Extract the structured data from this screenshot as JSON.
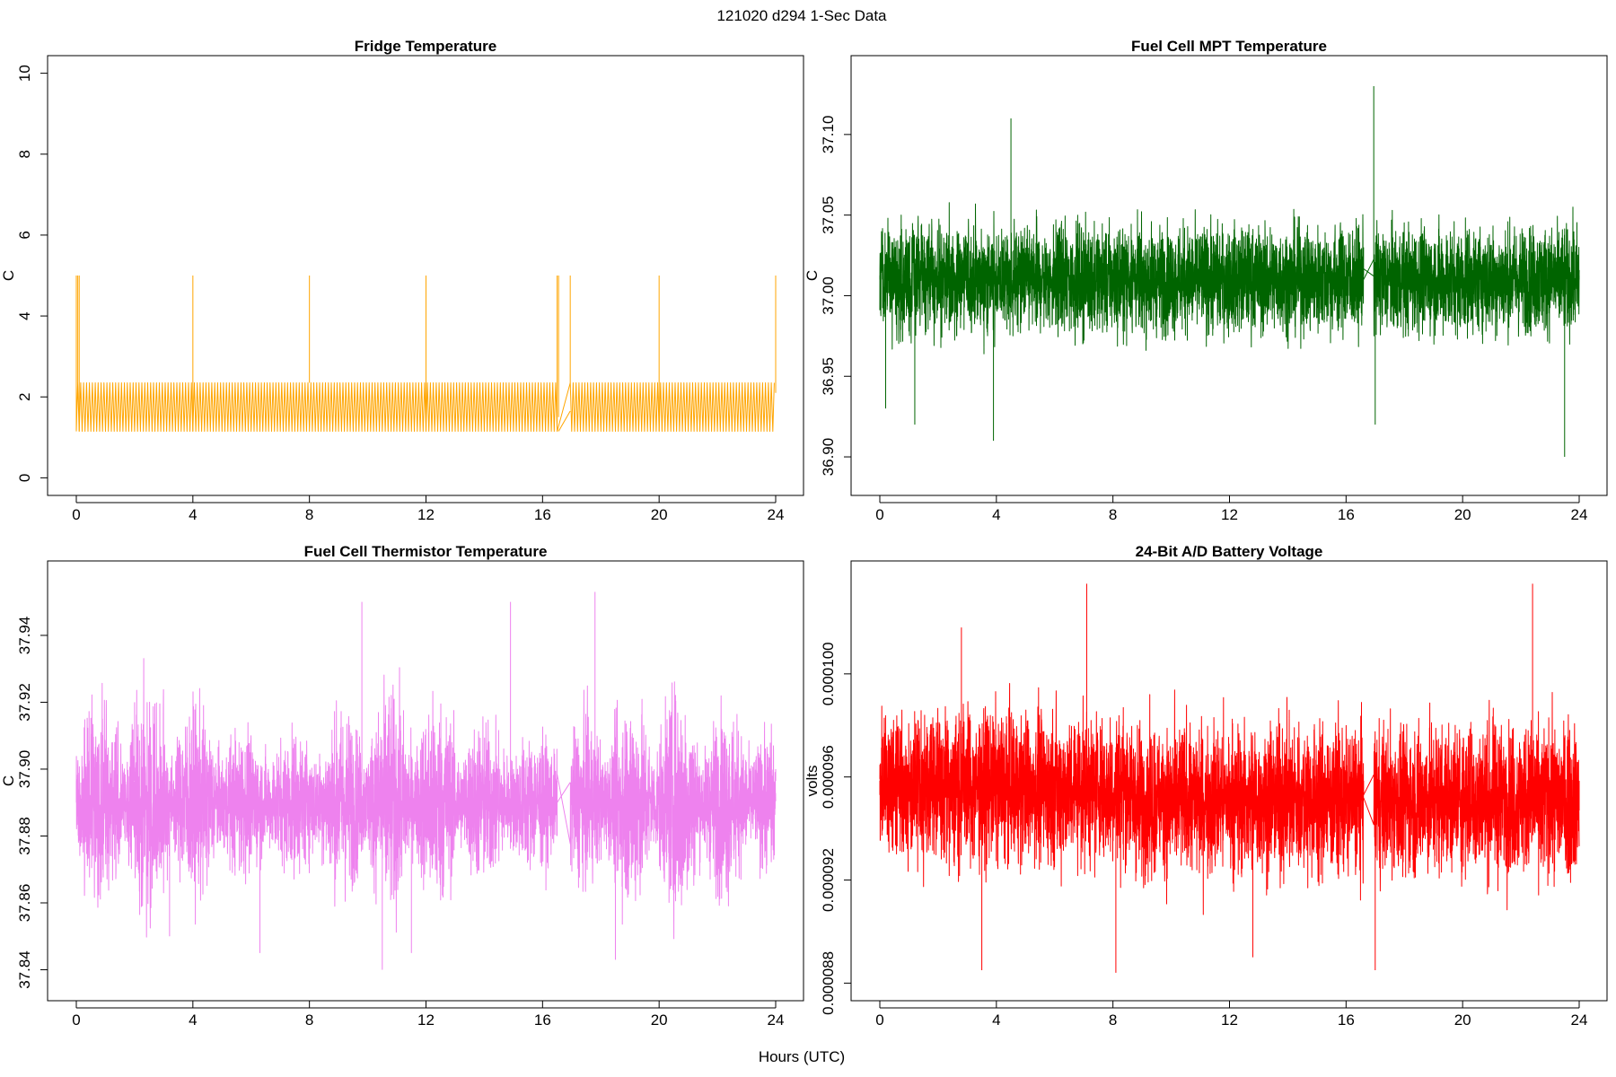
{
  "figure": {
    "title": "121020   d294   1-Sec Data",
    "xlabel": "Hours (UTC)"
  },
  "chart_data": [
    {
      "type": "line",
      "title": "Fridge Temperature",
      "ylabel": "C",
      "color": "#FFA500",
      "xlim": [
        0,
        24
      ],
      "ylim": [
        0,
        10
      ],
      "xticks": [
        "0",
        "4",
        "8",
        "12",
        "16",
        "20",
        "24"
      ],
      "yticks": [
        "0",
        "2",
        "4",
        "6",
        "8",
        "10"
      ],
      "gap": [
        16.55,
        16.95
      ],
      "shape": "sawtooth cycling between about 1.15 and 2.35 C, period about 0.1 h",
      "series": [
        {
          "values": [
            [
              0,
              1.15
            ],
            [
              0.05,
              2.35
            ],
            [
              0.1,
              1.15
            ],
            [
              4,
              1.15
            ],
            [
              8,
              2.35
            ],
            [
              12,
              1.15
            ],
            [
              16.5,
              1.2
            ],
            [
              16.55,
              1.5
            ],
            [
              16.95,
              2.35
            ],
            [
              20,
              1.15
            ],
            [
              24,
              2.1
            ]
          ]
        }
      ]
    },
    {
      "type": "line",
      "title": "Fuel Cell MPT Temperature",
      "ylabel": "C",
      "color": "#006400",
      "xlim": [
        0,
        24
      ],
      "ylim": [
        36.887,
        37.138
      ],
      "xticks": [
        "0",
        "4",
        "8",
        "12",
        "16",
        "20",
        "24"
      ],
      "yticks": [
        "36.90",
        "36.95",
        "37.00",
        "37.05",
        "37.10"
      ],
      "gap": [
        16.6,
        16.95
      ],
      "shape": "dense noise centered near 37.01 C, typical range 36.97-37.06, spikes to 37.13 and 36.90",
      "series": [
        {
          "values": [
            [
              0,
              37.01
            ],
            [
              0.2,
              36.93
            ],
            [
              1.2,
              36.92
            ],
            [
              3.9,
              36.91
            ],
            [
              4.5,
              37.11
            ],
            [
              16.6,
              37.03
            ],
            [
              16.95,
              37.13
            ],
            [
              17.0,
              36.92
            ],
            [
              23.5,
              36.9
            ],
            [
              24,
              37.01
            ]
          ]
        }
      ]
    },
    {
      "type": "line",
      "title": "Fuel Cell Thermistor Temperature",
      "ylabel": "C",
      "color": "#EE82EE",
      "xlim": [
        0,
        24
      ],
      "ylim": [
        37.836,
        37.957
      ],
      "xticks": [
        "0",
        "4",
        "8",
        "12",
        "16",
        "20",
        "24"
      ],
      "yticks": [
        "37.84",
        "37.86",
        "37.88",
        "37.90",
        "37.92",
        "37.94"
      ],
      "gap": [
        16.5,
        16.95
      ],
      "shape": "dense noise centered near 37.89-37.90 C with envelope widening in bursts",
      "series": [
        {
          "values": [
            [
              0,
              37.89
            ],
            [
              2,
              37.92
            ],
            [
              3.2,
              37.85
            ],
            [
              6.3,
              37.845
            ],
            [
              9.8,
              37.95
            ],
            [
              10.5,
              37.84
            ],
            [
              11.5,
              37.845
            ],
            [
              14.9,
              37.95
            ],
            [
              16.5,
              37.88
            ],
            [
              17.8,
              37.953
            ],
            [
              18.5,
              37.843
            ],
            [
              24,
              37.9
            ]
          ]
        }
      ]
    },
    {
      "type": "line",
      "title": "24-Bit A/D Battery Voltage",
      "ylabel": "volts",
      "color": "#FF0000",
      "xlim": [
        0,
        24
      ],
      "ylim": [
        8.8e-05,
        0.0001037
      ],
      "xticks": [
        "0",
        "4",
        "8",
        "12",
        "16",
        "20",
        "24"
      ],
      "yticks": [
        "0.000088",
        "0.000092",
        "0.000096",
        "0.000100"
      ],
      "gap": [
        16.6,
        16.95
      ],
      "shape": "dense noise centered near 0.0000953 V, typical range 0.000092-0.000099",
      "series": [
        {
          "values": [
            [
              0,
              9.53e-05
            ],
            [
              2.8,
              0.0001018
            ],
            [
              3.5,
              8.85e-05
            ],
            [
              7.1,
              0.0001035
            ],
            [
              8.1,
              8.84e-05
            ],
            [
              12.8,
              8.9e-05
            ],
            [
              16.6,
              9.53e-05
            ],
            [
              17,
              8.85e-05
            ],
            [
              22.4,
              0.0001035
            ],
            [
              24,
              9.47e-05
            ]
          ]
        }
      ]
    }
  ]
}
